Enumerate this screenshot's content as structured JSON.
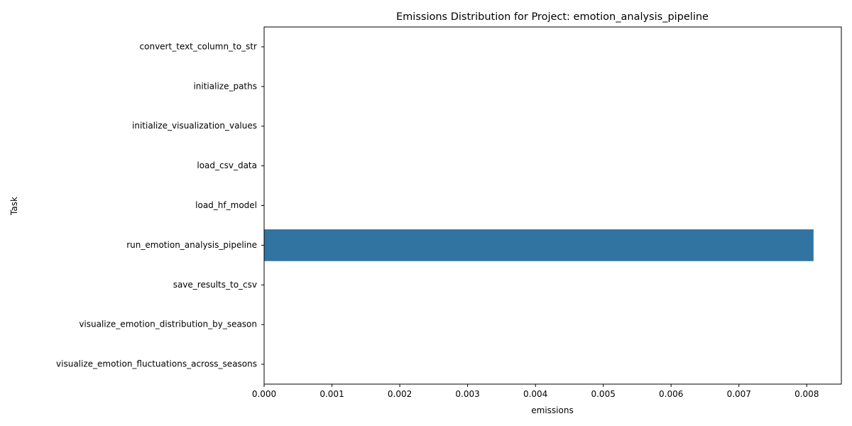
{
  "chart_data": {
    "type": "bar",
    "orientation": "horizontal",
    "title": "Emissions Distribution for Project: emotion_analysis_pipeline",
    "xlabel": "emissions",
    "ylabel": "Task",
    "categories": [
      "convert_text_column_to_str",
      "initialize_paths",
      "initialize_visualization_values",
      "load_csv_data",
      "load_hf_model",
      "run_emotion_analysis_pipeline",
      "save_results_to_csv",
      "visualize_emotion_distribution_by_season",
      "visualize_emotion_fluctuations_across_seasons"
    ],
    "values": [
      0,
      0,
      0,
      0,
      0,
      0.0081,
      0,
      0,
      0
    ],
    "xlim": [
      0,
      0.00851
    ],
    "xticks": [
      "0.000",
      "0.001",
      "0.002",
      "0.003",
      "0.004",
      "0.005",
      "0.006",
      "0.007",
      "0.008"
    ],
    "bar_color": "#3274a1",
    "grid": false
  }
}
